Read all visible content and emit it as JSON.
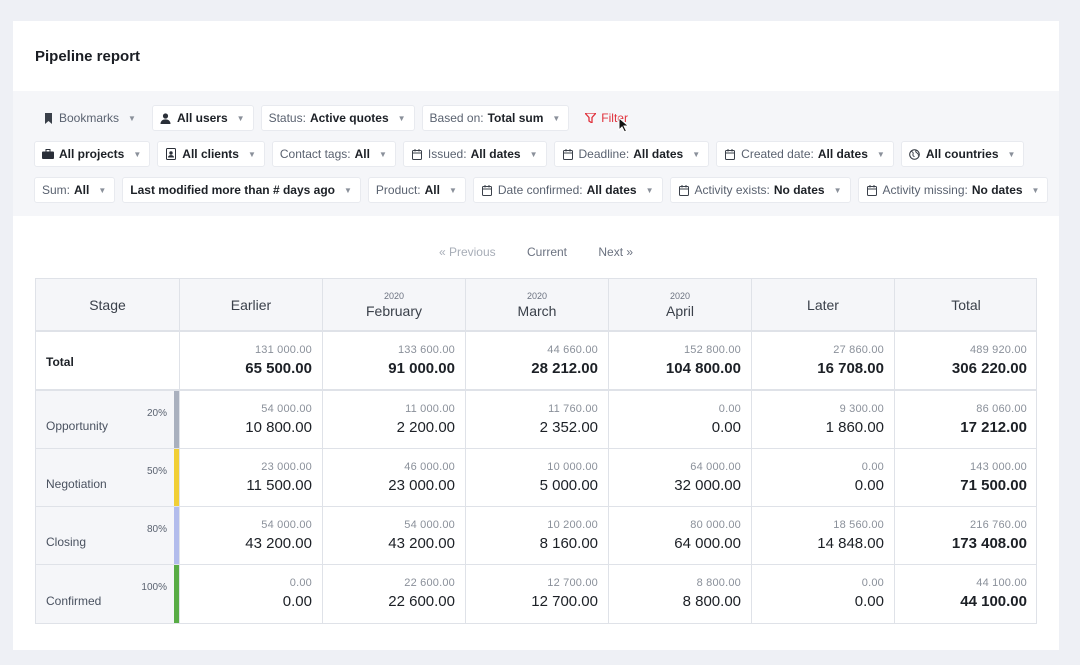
{
  "page": {
    "title": "Pipeline report"
  },
  "filters": {
    "row1": [
      {
        "icon": "bookmark-icon",
        "label": "Bookmarks",
        "value": "",
        "style": "plain"
      },
      {
        "icon": "user-icon",
        "label": "",
        "value": "All users",
        "style": "chip"
      },
      {
        "icon": "",
        "label": "Status:",
        "value": "Active quotes",
        "style": "chip"
      },
      {
        "icon": "",
        "label": "Based on:",
        "value": "Total sum",
        "style": "chip"
      },
      {
        "icon": "filter-icon",
        "label": "Filter",
        "value": "",
        "style": "filter"
      }
    ],
    "row2": [
      {
        "icon": "briefcase-icon",
        "label": "",
        "value": "All projects",
        "style": "chip"
      },
      {
        "icon": "client-icon",
        "label": "",
        "value": "All clients",
        "style": "chip"
      },
      {
        "icon": "",
        "label": "Contact tags:",
        "value": "All",
        "style": "chip"
      },
      {
        "icon": "calendar-icon",
        "label": "Issued:",
        "value": "All dates",
        "style": "chip"
      },
      {
        "icon": "calendar-icon",
        "label": "Deadline:",
        "value": "All dates",
        "style": "chip"
      },
      {
        "icon": "calendar-icon",
        "label": "Created date:",
        "value": "All dates",
        "style": "chip"
      },
      {
        "icon": "globe-icon",
        "label": "",
        "value": "All countries",
        "style": "chip"
      }
    ],
    "row3": [
      {
        "icon": "",
        "label": "Sum:",
        "value": "All",
        "style": "chip"
      },
      {
        "icon": "",
        "label": "",
        "value": "Last modified more than # days ago",
        "style": "chip"
      },
      {
        "icon": "",
        "label": "Product:",
        "value": "All",
        "style": "chip"
      },
      {
        "icon": "calendar-icon",
        "label": "Date confirmed:",
        "value": "All dates",
        "style": "chip"
      },
      {
        "icon": "calendar-icon",
        "label": "Activity exists:",
        "value": "No dates",
        "style": "chip"
      },
      {
        "icon": "calendar-icon",
        "label": "Activity missing:",
        "value": "No dates",
        "style": "chip"
      }
    ]
  },
  "pager": {
    "previous": "« Previous",
    "current": "Current",
    "next": "Next »"
  },
  "table": {
    "columns": [
      {
        "year": "",
        "label": "Stage"
      },
      {
        "year": "",
        "label": "Earlier"
      },
      {
        "year": "2020",
        "label": "February"
      },
      {
        "year": "2020",
        "label": "March"
      },
      {
        "year": "2020",
        "label": "April"
      },
      {
        "year": "",
        "label": "Later"
      },
      {
        "year": "",
        "label": "Total"
      }
    ],
    "rows": [
      {
        "name": "Total",
        "pct": "",
        "color": "",
        "cells": [
          {
            "sub": "131 000.00",
            "main": "65 500.00"
          },
          {
            "sub": "133 600.00",
            "main": "91 000.00"
          },
          {
            "sub": "44 660.00",
            "main": "28 212.00"
          },
          {
            "sub": "152 800.00",
            "main": "104 800.00"
          },
          {
            "sub": "27 860.00",
            "main": "16 708.00"
          },
          {
            "sub": "489 920.00",
            "main": "306 220.00"
          }
        ]
      },
      {
        "name": "Opportunity",
        "pct": "20%",
        "color": "#a9b0be",
        "cells": [
          {
            "sub": "54 000.00",
            "main": "10 800.00"
          },
          {
            "sub": "11 000.00",
            "main": "2 200.00"
          },
          {
            "sub": "11 760.00",
            "main": "2 352.00"
          },
          {
            "sub": "0.00",
            "main": "0.00"
          },
          {
            "sub": "9 300.00",
            "main": "1 860.00"
          },
          {
            "sub": "86 060.00",
            "main": "17 212.00"
          }
        ]
      },
      {
        "name": "Negotiation",
        "pct": "50%",
        "color": "#f1cf35",
        "cells": [
          {
            "sub": "23 000.00",
            "main": "11 500.00"
          },
          {
            "sub": "46 000.00",
            "main": "23 000.00"
          },
          {
            "sub": "10 000.00",
            "main": "5 000.00"
          },
          {
            "sub": "64 000.00",
            "main": "32 000.00"
          },
          {
            "sub": "0.00",
            "main": "0.00"
          },
          {
            "sub": "143 000.00",
            "main": "71 500.00"
          }
        ]
      },
      {
        "name": "Closing",
        "pct": "80%",
        "color": "#b2bcec",
        "cells": [
          {
            "sub": "54 000.00",
            "main": "43 200.00"
          },
          {
            "sub": "54 000.00",
            "main": "43 200.00"
          },
          {
            "sub": "10 200.00",
            "main": "8 160.00"
          },
          {
            "sub": "80 000.00",
            "main": "64 000.00"
          },
          {
            "sub": "18 560.00",
            "main": "14 848.00"
          },
          {
            "sub": "216 760.00",
            "main": "173 408.00"
          }
        ]
      },
      {
        "name": "Confirmed",
        "pct": "100%",
        "color": "#58ac45",
        "cells": [
          {
            "sub": "0.00",
            "main": "0.00"
          },
          {
            "sub": "22 600.00",
            "main": "22 600.00"
          },
          {
            "sub": "12 700.00",
            "main": "12 700.00"
          },
          {
            "sub": "8 800.00",
            "main": "8 800.00"
          },
          {
            "sub": "0.00",
            "main": "0.00"
          },
          {
            "sub": "44 100.00",
            "main": "44 100.00"
          }
        ]
      }
    ]
  }
}
